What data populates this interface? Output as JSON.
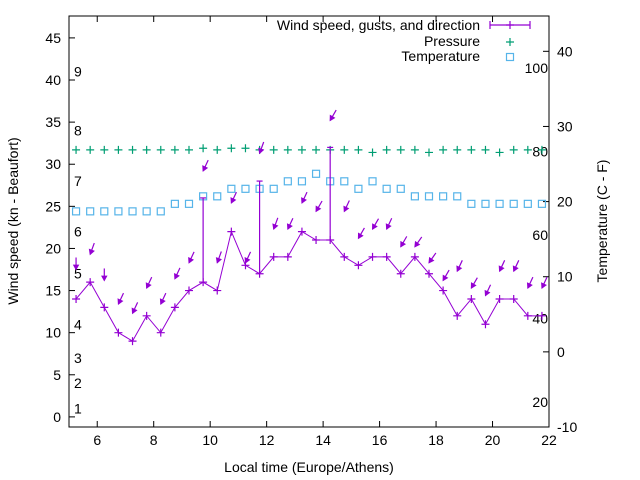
{
  "chart_data": {
    "type": "line",
    "title": "",
    "xlabel": "Local time (Europe/Athens)",
    "ylabel": "Wind speed (kn - Beaufort)",
    "y2label": "Temperature (C - F)",
    "xlim": [
      5,
      22
    ],
    "ylim": [
      -1.2,
      47.6
    ],
    "y2lim": [
      -10,
      44.7
    ],
    "x_ticks": [
      6,
      8,
      10,
      12,
      14,
      16,
      18,
      20,
      22
    ],
    "y_ticks": [
      0,
      5,
      10,
      15,
      20,
      25,
      30,
      35,
      40,
      45
    ],
    "y2_ticks": [
      -10,
      0,
      10,
      20,
      30,
      40
    ],
    "beaufort_labels": [
      {
        "label": "1",
        "kn": 1
      },
      {
        "label": "2",
        "kn": 4
      },
      {
        "label": "3",
        "kn": 7
      },
      {
        "label": "4",
        "kn": 11
      },
      {
        "label": "5",
        "kn": 17
      },
      {
        "label": "6",
        "kn": 22
      },
      {
        "label": "7",
        "kn": 28
      },
      {
        "label": "8",
        "kn": 34
      },
      {
        "label": "9",
        "kn": 41
      }
    ],
    "fahrenheit_labels": [
      {
        "label": "20",
        "f": 20
      },
      {
        "label": "40",
        "f": 40
      },
      {
        "label": "60",
        "f": 60
      },
      {
        "label": "80",
        "f": 80
      },
      {
        "label": "100",
        "f": 100
      }
    ],
    "legend": {
      "placement": "top-right",
      "entries": [
        "Wind speed, gusts, and direction",
        "Pressure",
        "Temperature"
      ]
    },
    "colors": {
      "wind": "#9400d3",
      "pressure": "#009e73",
      "temperature": "#56b4e9"
    },
    "x": [
      5.25,
      5.75,
      6.25,
      6.75,
      7.25,
      7.75,
      8.25,
      8.75,
      9.25,
      9.75,
      10.25,
      10.75,
      11.25,
      11.75,
      12.25,
      12.75,
      13.25,
      13.75,
      14.25,
      14.75,
      15.25,
      15.75,
      16.25,
      16.75,
      17.25,
      17.75,
      18.25,
      18.75,
      19.25,
      19.75,
      20.25,
      20.75,
      21.25,
      21.75
    ],
    "series": [
      {
        "name": "Wind speed",
        "axis": "y",
        "values": [
          14,
          16,
          13,
          10,
          9,
          12,
          10,
          13,
          15,
          16,
          15,
          22,
          18,
          17,
          19,
          19,
          22,
          21,
          21,
          19,
          18,
          19,
          19,
          17,
          19,
          17,
          15,
          12,
          14,
          11,
          14,
          14,
          12,
          12
        ]
      },
      {
        "name": "Gusts",
        "axis": "y",
        "values": [
          null,
          null,
          null,
          null,
          null,
          null,
          null,
          null,
          null,
          26,
          null,
          null,
          null,
          28,
          null,
          null,
          null,
          null,
          32,
          null,
          null,
          null,
          null,
          null,
          null,
          null,
          null,
          null,
          null,
          null,
          null,
          null,
          null,
          null
        ]
      },
      {
        "name": "Wind direction marker level",
        "axis": "y",
        "values": [
          17.5,
          19.3,
          16.2,
          13.4,
          12.3,
          15.3,
          13.4,
          16.4,
          18.3,
          29.2,
          18.3,
          25.4,
          18.3,
          31.3,
          22.3,
          22.3,
          25.4,
          24.4,
          35.2,
          24.4,
          21.2,
          22.3,
          22.3,
          20.2,
          20.2,
          18.3,
          16.2,
          17.3,
          15.3,
          14.4,
          17.3,
          17.3,
          15.3,
          15.3
        ]
      },
      {
        "name": "Wind direction (from, deg)",
        "values": [
          0,
          20,
          0,
          25,
          25,
          25,
          25,
          25,
          25,
          25,
          20,
          25,
          25,
          20,
          20,
          25,
          25,
          30,
          30,
          25,
          30,
          30,
          25,
          30,
          35,
          35,
          30,
          25,
          30,
          25,
          25,
          25,
          25,
          25
        ]
      },
      {
        "name": "Pressure",
        "axis": "y",
        "values": [
          31.7,
          31.7,
          31.7,
          31.7,
          31.7,
          31.7,
          31.7,
          31.7,
          31.7,
          31.9,
          31.7,
          31.9,
          31.9,
          31.7,
          31.7,
          31.7,
          31.7,
          31.7,
          31.7,
          31.7,
          31.7,
          31.4,
          31.7,
          31.7,
          31.7,
          31.4,
          31.7,
          31.7,
          31.7,
          31.7,
          31.4,
          31.7,
          31.7,
          31.7
        ]
      },
      {
        "name": "Temperature",
        "axis": "y2",
        "values": [
          18.7,
          18.7,
          18.7,
          18.7,
          18.7,
          18.7,
          18.7,
          19.7,
          19.7,
          20.7,
          20.7,
          21.7,
          21.7,
          21.7,
          21.7,
          22.7,
          22.7,
          23.7,
          22.7,
          22.7,
          21.7,
          22.7,
          21.7,
          21.7,
          20.7,
          20.7,
          20.7,
          20.7,
          19.7,
          19.7,
          19.7,
          19.7,
          19.7,
          19.7
        ]
      }
    ]
  }
}
